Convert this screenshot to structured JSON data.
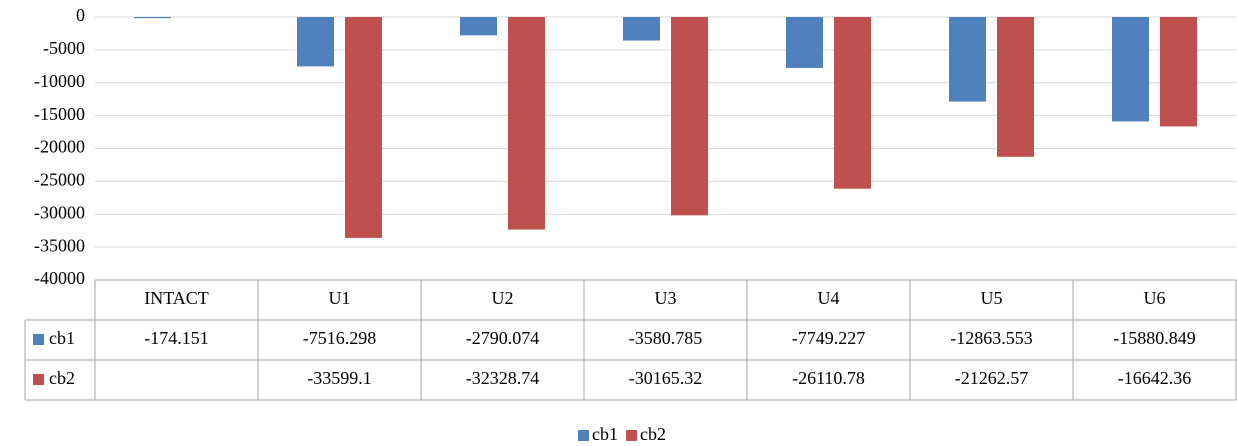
{
  "chart_data": {
    "type": "bar",
    "categories": [
      "INTACT",
      "U1",
      "U2",
      "U3",
      "U4",
      "U5",
      "U6"
    ],
    "series": [
      {
        "name": "cb1",
        "color": "#4f81bd",
        "values": [
          -174.151,
          -7516.298,
          -2790.074,
          -3580.785,
          -7749.227,
          -12863.553,
          -15880.849
        ]
      },
      {
        "name": "cb2",
        "color": "#c0504d",
        "values": [
          null,
          -33599.1,
          -32328.74,
          -30165.32,
          -26110.78,
          -21262.57,
          -16642.36
        ]
      }
    ],
    "ylim": [
      -40000,
      0
    ],
    "yticks": [
      0,
      -5000,
      -10000,
      -15000,
      -20000,
      -25000,
      -30000,
      -35000,
      -40000
    ],
    "grid": true,
    "data_table": true,
    "legend": "bottom"
  }
}
